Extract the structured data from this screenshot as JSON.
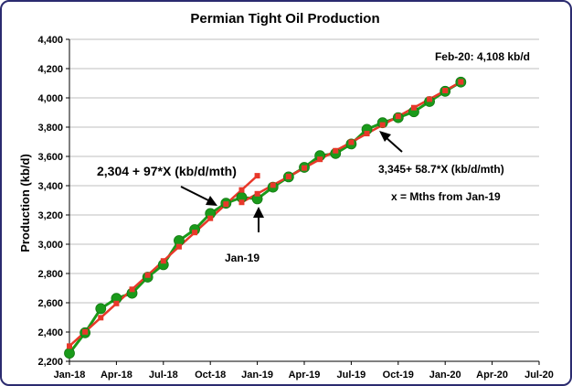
{
  "chart_data": {
    "type": "line",
    "title": "Permian Tight Oil Production",
    "xlabel": "",
    "ylabel": "Production (kb/d)",
    "ylim": [
      2200,
      4400
    ],
    "y_ticks": [
      "2,200",
      "2,400",
      "2,600",
      "2,800",
      "3,000",
      "3,200",
      "3,400",
      "3,600",
      "3,800",
      "4,000",
      "4,200",
      "4,400"
    ],
    "x_ticks": [
      "Jan-18",
      "Apr-18",
      "Jul-18",
      "Oct-18",
      "Jan-19",
      "Apr-19",
      "Jul-19",
      "Oct-19",
      "Jan-20",
      "Apr-20",
      "Jul-20"
    ],
    "x_tick_months": [
      0,
      3,
      6,
      9,
      12,
      15,
      18,
      21,
      24,
      27,
      30
    ],
    "xlim_months": [
      0,
      30
    ],
    "grid": true,
    "series": [
      {
        "color": "#1a9a1a",
        "marker": "circle",
        "x_months": [
          0,
          1,
          2,
          3,
          4,
          5,
          6,
          7,
          8,
          9,
          10,
          11,
          12,
          13,
          14,
          15,
          16,
          17,
          18,
          19,
          20,
          21,
          22,
          23,
          24,
          25
        ],
        "values": [
          2255,
          2395,
          2560,
          2630,
          2665,
          2775,
          2860,
          3025,
          3100,
          3210,
          3280,
          3320,
          3310,
          3390,
          3460,
          3525,
          3605,
          3620,
          3685,
          3785,
          3830,
          3865,
          3905,
          3975,
          4045,
          4108
        ]
      },
      {
        "color": "#e8382a",
        "marker": "square",
        "x_months": [
          0,
          1,
          2,
          3,
          4,
          5,
          6,
          7,
          8,
          9,
          10,
          11,
          12
        ],
        "values": [
          2304,
          2401,
          2498,
          2595,
          2692,
          2789,
          2886,
          2983,
          3080,
          3177,
          3274,
          3371,
          3468
        ]
      },
      {
        "color": "#e8382a",
        "marker": "square",
        "x_months": [
          11,
          12,
          13,
          14,
          15,
          16,
          17,
          18,
          19,
          20,
          21,
          22,
          23,
          24,
          25
        ],
        "values": [
          3286,
          3345,
          3404,
          3462,
          3521,
          3580,
          3639,
          3697,
          3756,
          3815,
          3874,
          3933,
          3991,
          4050,
          4109
        ]
      }
    ],
    "annotations": [
      {
        "text": "Feb-20: 4,108 kb/d"
      },
      {
        "text": "2,304 + 97*X (kb/d/mth)"
      },
      {
        "text": "3,345+ 58.7*X (kb/d/mth)"
      },
      {
        "text": "x = Mths from Jan-19"
      },
      {
        "text": "Jan-19"
      }
    ]
  }
}
